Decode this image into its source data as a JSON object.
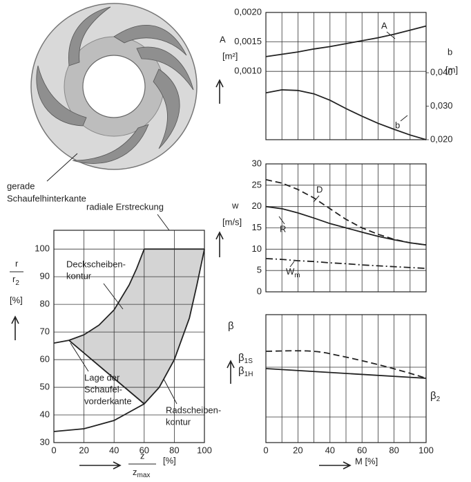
{
  "impeller_annotation": [
    "gerade",
    "Schaufelhinterkante"
  ],
  "chart_data": [
    {
      "type": "line",
      "y_label": "A",
      "y_unit": "[m²]",
      "y2_label": "b",
      "y2_unit": "[m]",
      "x": [
        0,
        10,
        20,
        30,
        40,
        50,
        60,
        70,
        80,
        90,
        100
      ],
      "xlim": [
        0,
        100
      ],
      "xgrid": [
        10,
        20,
        30,
        40,
        50,
        60,
        70,
        80,
        90
      ],
      "ylim": [
        -0.00016,
        0.002
      ],
      "yticks": [
        {
          "value": 0.001,
          "label": "0,0010"
        },
        {
          "value": 0.0015,
          "label": "0,0015"
        },
        {
          "value": 0.002,
          "label": "0,0020"
        }
      ],
      "y2lim": [
        0.02,
        0.058
      ],
      "y2ticks": [
        {
          "value": 0.02,
          "label": "0,020"
        },
        {
          "value": 0.03,
          "label": "0,030"
        },
        {
          "value": 0.04,
          "label": "0,040"
        }
      ],
      "series": [
        {
          "name": "A",
          "color": "#222",
          "dash": "solid",
          "values": [
            0.00125,
            0.00129,
            0.00133,
            0.00138,
            0.00142,
            0.00147,
            0.00152,
            0.00157,
            0.00163,
            0.0017,
            0.00177
          ]
        },
        {
          "name": "b",
          "color": "#222",
          "dash": "solid",
          "axis": "y2",
          "values": [
            0.034,
            0.0349,
            0.0347,
            0.0337,
            0.0318,
            0.0293,
            0.027,
            0.0249,
            0.0231,
            0.0214,
            0.02
          ]
        }
      ]
    },
    {
      "type": "line",
      "y_label": "w",
      "y_unit": "[m/s]",
      "x": [
        0,
        10,
        20,
        30,
        40,
        50,
        60,
        70,
        80,
        90,
        100
      ],
      "xlim": [
        0,
        100
      ],
      "xgrid": [
        10,
        20,
        30,
        40,
        50,
        60,
        70,
        80,
        90
      ],
      "ylim": [
        0,
        30
      ],
      "yticks": [
        0,
        5,
        10,
        15,
        20,
        25,
        30
      ],
      "series": [
        {
          "name": "D",
          "color": "#222",
          "dash": "dashed",
          "values": [
            26.3,
            25.5,
            24,
            22,
            19.5,
            17,
            15,
            13.5,
            12.3,
            11.5,
            11
          ]
        },
        {
          "name": "R",
          "color": "#222",
          "dash": "solid",
          "values": [
            20,
            19.5,
            18.5,
            17.3,
            16,
            15,
            14,
            13,
            12.2,
            11.5,
            11
          ]
        },
        {
          "name": "W",
          "name_sub": "m",
          "color": "#222",
          "dash": "dash-dot",
          "values": [
            7.8,
            7.6,
            7.3,
            7.1,
            6.8,
            6.6,
            6.3,
            6.1,
            5.9,
            5.7,
            5.5
          ]
        }
      ]
    },
    {
      "type": "line",
      "y_label": "β",
      "x_label": "M [%]",
      "xlim": [
        0,
        100
      ],
      "xticks": [
        0,
        20,
        40,
        60,
        80,
        100
      ],
      "xgrid": [
        10,
        30,
        50,
        70,
        90
      ],
      "curve_labels": [
        {
          "text": "β",
          "sub": "1S"
        },
        {
          "text": "β",
          "sub": "1H"
        },
        {
          "text": "β",
          "sub": "2"
        }
      ]
    },
    {
      "type": "line",
      "y_label": "r",
      "y_label_den": "r",
      "y_label_den_sub": "2",
      "y_unit": "[%]",
      "x_label": "z",
      "x_label_den": "z",
      "x_label_den_sub": "max",
      "x_unit": "[%]",
      "xlim": [
        0,
        100
      ],
      "xticks": [
        0,
        20,
        40,
        60,
        80,
        100
      ],
      "ylim": [
        30,
        106.8
      ],
      "yticks": [
        30,
        40,
        50,
        60,
        70,
        80,
        90,
        100
      ],
      "series": [
        {
          "color": "#222",
          "x": [
            0,
            10,
            20,
            30,
            40,
            50,
            55,
            60
          ],
          "values": [
            66,
            67,
            69,
            72.5,
            78,
            87,
            93,
            100
          ]
        },
        {
          "color": "#222",
          "x": [
            0,
            20,
            40,
            60,
            70,
            80,
            90,
            95,
            100
          ],
          "values": [
            34,
            35,
            38,
            44,
            50,
            60,
            75,
            87,
            100
          ]
        },
        {
          "color": "#222",
          "x": [
            10,
            60
          ],
          "values": [
            67,
            44
          ]
        }
      ],
      "area_color": "#d4d4d4",
      "annotations": [
        [
          "radiale Erstreckung"
        ],
        [
          "Deckscheiben-",
          "kontur"
        ],
        [
          "Lage der",
          "Schaufel-",
          "vorderkante"
        ],
        [
          "Radscheiben-",
          "kontur"
        ]
      ]
    }
  ]
}
